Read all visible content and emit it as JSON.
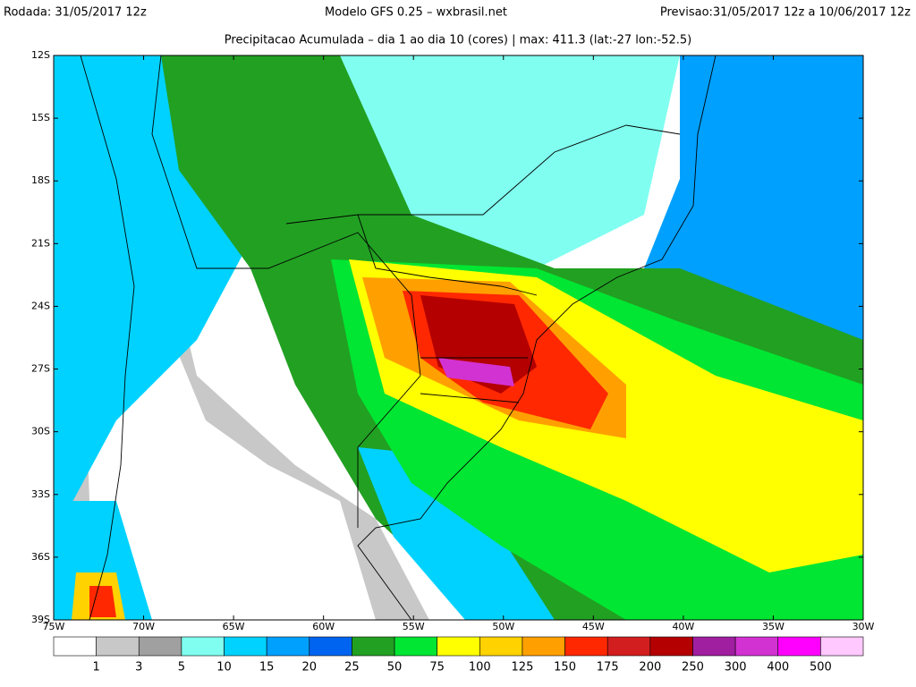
{
  "header": {
    "run": "Rodada: 31/05/2017 12z",
    "model": "Modelo GFS 0.25 – wxbrasil.net",
    "forecast": "Previsao:31/05/2017 12z a 10/06/2017 12z"
  },
  "subtitle": "Precipitacao Acumulada – dia 1 ao dia 10 (cores) | max: 411.3 (lat:-27 lon:-52.5)",
  "map": {
    "lat_labels": [
      "12S",
      "15S",
      "18S",
      "21S",
      "24S",
      "27S",
      "30S",
      "33S",
      "36S",
      "39S"
    ],
    "lon_labels": [
      "75W",
      "70W",
      "65W",
      "60W",
      "55W",
      "50W",
      "45W",
      "40W",
      "35W",
      "30W"
    ]
  },
  "legend": {
    "colors": [
      "#ffffff",
      "#c8c8c8",
      "#a0a0a0",
      "#80fff0",
      "#00d2ff",
      "#00a0ff",
      "#0064f0",
      "#22a022",
      "#00e632",
      "#ffff00",
      "#ffd200",
      "#ffa000",
      "#ff2800",
      "#d21e1e",
      "#b40000",
      "#a01ea0",
      "#d232d2",
      "#ff00ff",
      "#ffc8ff"
    ],
    "labels": [
      "1",
      "3",
      "5",
      "10",
      "15",
      "20",
      "25",
      "50",
      "75",
      "100",
      "125",
      "150",
      "175",
      "200",
      "250",
      "300",
      "400",
      "500"
    ]
  }
}
